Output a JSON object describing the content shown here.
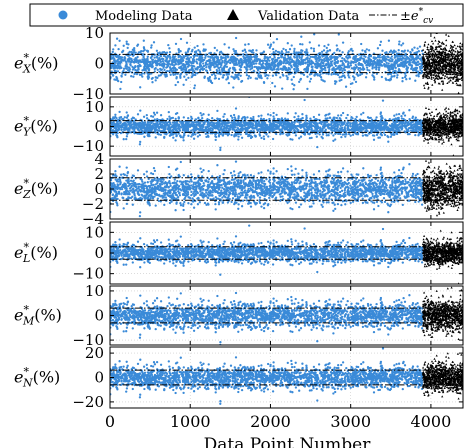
{
  "chart_data": {
    "type": "scatter",
    "layout": "six vertically stacked panels sharing the x axis",
    "xlabel": "Data Point Number",
    "x_ticks": [
      "0",
      "1000",
      "2000",
      "3000",
      "4000"
    ],
    "xlim": [
      0,
      4400
    ],
    "grid": true,
    "legend_position": "top, above all panels, single row with border",
    "legend": [
      {
        "label": "Modeling Data",
        "marker": "circle",
        "color": "#3a8ad8"
      },
      {
        "label": "Validation Data",
        "marker": "triangle",
        "color": "#000000"
      },
      {
        "label": "±e*cv",
        "marker": "dash-dot line",
        "color": "#000000"
      }
    ],
    "series": [
      {
        "name": "Modeling Data",
        "x_range": [
          0,
          3900
        ],
        "color": "#3a8ad8"
      },
      {
        "name": "Validation Data",
        "x_range": [
          3900,
          4400
        ],
        "color": "#000000"
      }
    ],
    "panels": [
      {
        "ylabel_base": "e",
        "ylabel_sub": "X",
        "ylabel_unit": "(%)",
        "ylim": [
          -10,
          10
        ],
        "yticks": [
          10,
          0,
          -10
        ],
        "ytick_labels": [
          "10",
          "0",
          "−10"
        ],
        "cv_band": 3,
        "spread": 2.5
      },
      {
        "ylabel_base": "e",
        "ylabel_sub": "Y",
        "ylabel_unit": "(%)",
        "ylim": [
          -15,
          15
        ],
        "yticks": [
          10,
          0,
          -10
        ],
        "ytick_labels": [
          "10",
          "0",
          "−10"
        ],
        "cv_band": 3,
        "spread": 2.5
      },
      {
        "ylabel_base": "e",
        "ylabel_sub": "Z",
        "ylabel_unit": "(%)",
        "ylim": [
          -4,
          4
        ],
        "yticks": [
          4,
          2,
          0,
          -2,
          -4
        ],
        "ytick_labels": [
          "4",
          "2",
          "0",
          "−2",
          "−4"
        ],
        "cv_band": 1.5,
        "spread": 1.0
      },
      {
        "ylabel_base": "e",
        "ylabel_sub": "L",
        "ylabel_unit": "(%)",
        "ylim": [
          -15,
          15
        ],
        "yticks": [
          10,
          0,
          -10
        ],
        "ytick_labels": [
          "10",
          "0",
          "−10"
        ],
        "cv_band": 3,
        "spread": 2.2
      },
      {
        "ylabel_base": "e",
        "ylabel_sub": "M",
        "ylabel_unit": "(%)",
        "ylim": [
          -12,
          12
        ],
        "yticks": [
          10,
          0,
          -10
        ],
        "ytick_labels": [
          "10",
          "0",
          "−10"
        ],
        "cv_band": 3,
        "spread": 2.5
      },
      {
        "ylabel_base": "e",
        "ylabel_sub": "N",
        "ylabel_unit": "(%)",
        "ylim": [
          -25,
          25
        ],
        "yticks": [
          20,
          0,
          -20
        ],
        "ytick_labels": [
          "20",
          "0",
          "−20"
        ],
        "cv_band": 6,
        "spread": 4.5
      }
    ]
  }
}
